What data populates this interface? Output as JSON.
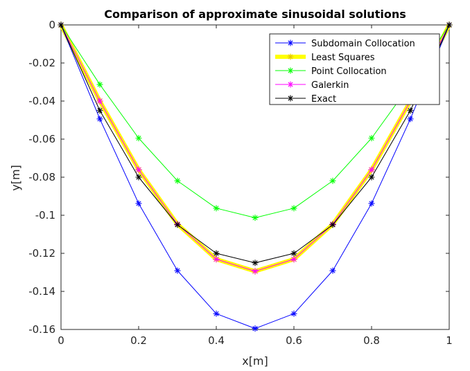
{
  "chart_data": {
    "type": "line",
    "title": "Comparison of approximate sinusoidal solutions",
    "xlabel": "x[m]",
    "ylabel": "y[m]",
    "xlim": [
      0,
      1
    ],
    "ylim": [
      -0.16,
      0
    ],
    "x_ticks": [
      "0",
      "0.2",
      "0.4",
      "0.6",
      "0.8",
      "1"
    ],
    "y_ticks": [
      "0",
      "-0.02",
      "-0.04",
      "-0.06",
      "-0.08",
      "-0.1",
      "-0.12",
      "-0.14",
      "-0.16"
    ],
    "grid": false,
    "legend_position": "top-right",
    "x": [
      0,
      0.1,
      0.2,
      0.3,
      0.4,
      0.5,
      0.6,
      0.7,
      0.8,
      0.9,
      1.0
    ],
    "series": [
      {
        "name": "Subdomain Collocation",
        "color": "#0000ff",
        "marker": "asterisk",
        "values": [
          0,
          -0.0494,
          -0.0938,
          -0.1291,
          -0.1517,
          -0.1595,
          -0.1517,
          -0.1291,
          -0.0938,
          -0.0494,
          0
        ]
      },
      {
        "name": "Least Squares",
        "color": "#ffff00",
        "marker": "asterisk",
        "thick": true,
        "values": [
          0,
          -0.04,
          -0.0761,
          -0.1047,
          -0.1231,
          -0.1294,
          -0.1231,
          -0.1047,
          -0.0761,
          -0.04,
          0
        ]
      },
      {
        "name": "Point Collocation",
        "color": "#00ff00",
        "marker": "asterisk",
        "values": [
          0,
          -0.0313,
          -0.0595,
          -0.0819,
          -0.0963,
          -0.1013,
          -0.0963,
          -0.0819,
          -0.0595,
          -0.0313,
          0
        ]
      },
      {
        "name": "Galerkin",
        "color": "#ff00ff",
        "marker": "asterisk",
        "values": [
          0,
          -0.04,
          -0.0761,
          -0.1047,
          -0.1231,
          -0.1294,
          -0.1231,
          -0.1047,
          -0.0761,
          -0.04,
          0
        ]
      },
      {
        "name": "Exact",
        "color": "#000000",
        "marker": "asterisk",
        "values": [
          0,
          -0.045,
          -0.08,
          -0.105,
          -0.12,
          -0.125,
          -0.12,
          -0.105,
          -0.08,
          -0.045,
          0
        ]
      }
    ]
  }
}
